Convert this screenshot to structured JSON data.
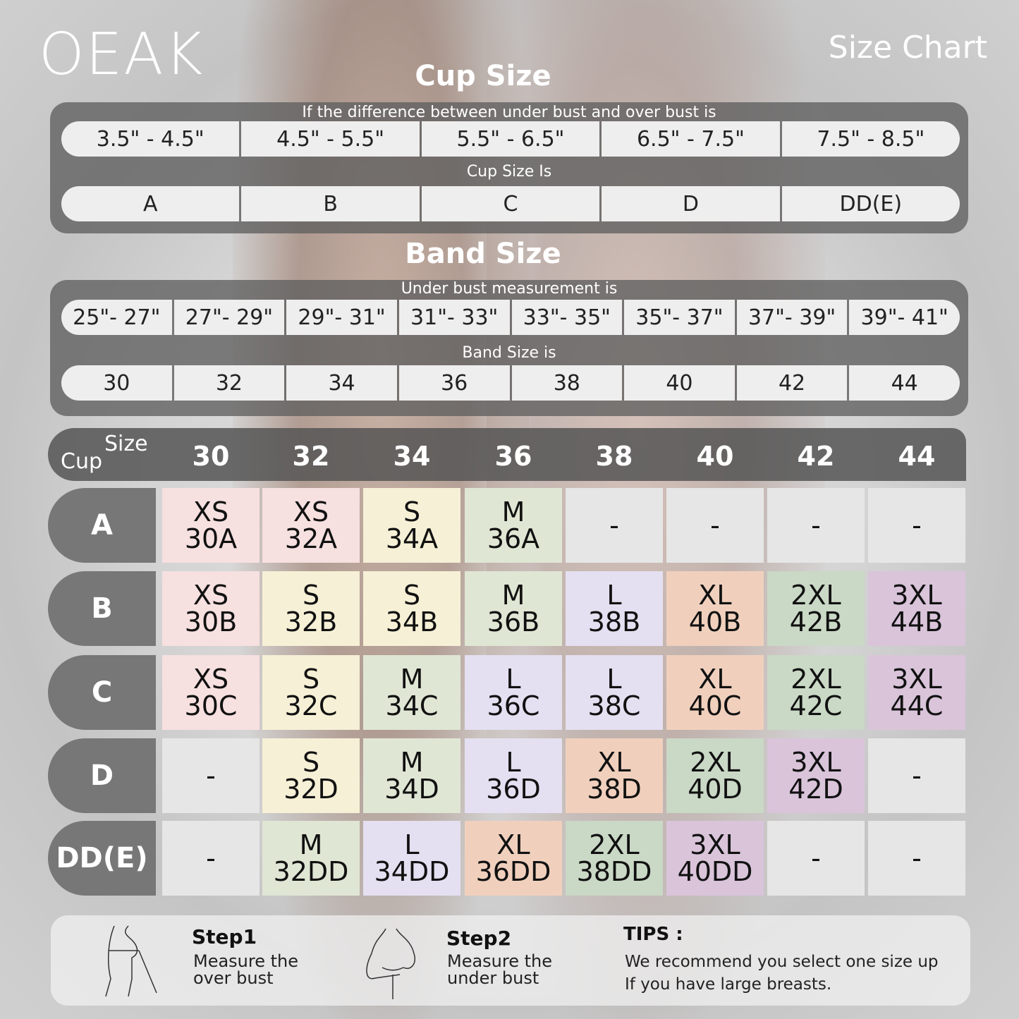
{
  "brand": "OEAK",
  "title": "Size Chart",
  "cup_section": {
    "heading": "Cup Size",
    "instruction": "If the  difference between under bust and over bust is",
    "ranges": [
      "3.5\" -  4.5\"",
      "4.5\" -  5.5\"",
      "5.5\" -  6.5\"",
      "6.5\" -  7.5\"",
      "7.5\" -  8.5\""
    ],
    "result_label": "Cup Size Is",
    "cups": [
      "A",
      "B",
      "C",
      "D",
      "DD(E)"
    ]
  },
  "band_section": {
    "heading": "Band Size",
    "instruction": "Under bust measurement is",
    "ranges": [
      "25\"- 27\"",
      "27\"- 29\"",
      "29\"- 31\"",
      "31\"- 33\"",
      "33\"- 35\"",
      "35\"- 37\"",
      "37\"- 39\"",
      "39\"- 41\""
    ],
    "result_label": "Band Size is",
    "bands": [
      "30",
      "32",
      "34",
      "36",
      "38",
      "40",
      "42",
      "44"
    ]
  },
  "table": {
    "corner_cup": "Cup",
    "corner_size": "Size",
    "columns": [
      "30",
      "32",
      "34",
      "36",
      "38",
      "40",
      "42",
      "44"
    ],
    "rows": [
      {
        "cup": "A",
        "cells": [
          [
            "XS",
            "30A"
          ],
          [
            "XS",
            "32A"
          ],
          [
            "S",
            "34A"
          ],
          [
            "M",
            "36A"
          ],
          [
            "-"
          ],
          [
            "-"
          ],
          [
            "-"
          ],
          [
            "-"
          ]
        ]
      },
      {
        "cup": "B",
        "cells": [
          [
            "XS",
            "30B"
          ],
          [
            "S",
            "32B"
          ],
          [
            "S",
            "34B"
          ],
          [
            "M",
            "36B"
          ],
          [
            "L",
            "38B"
          ],
          [
            "XL",
            "40B"
          ],
          [
            "2XL",
            "42B"
          ],
          [
            "3XL",
            "44B"
          ]
        ]
      },
      {
        "cup": "C",
        "cells": [
          [
            "XS",
            "30C"
          ],
          [
            "S",
            "32C"
          ],
          [
            "M",
            "34C"
          ],
          [
            "L",
            "36C"
          ],
          [
            "L",
            "38C"
          ],
          [
            "XL",
            "40C"
          ],
          [
            "2XL",
            "42C"
          ],
          [
            "3XL",
            "44C"
          ]
        ]
      },
      {
        "cup": "D",
        "cells": [
          [
            "-"
          ],
          [
            "S",
            "32D"
          ],
          [
            "M",
            "34D"
          ],
          [
            "L",
            "36D"
          ],
          [
            "XL",
            "38D"
          ],
          [
            "2XL",
            "40D"
          ],
          [
            "3XL",
            "42D"
          ],
          [
            "-"
          ]
        ]
      },
      {
        "cup": "DD(E)",
        "cells": [
          [
            "-"
          ],
          [
            "M",
            "32DD"
          ],
          [
            "L",
            "34DD"
          ],
          [
            "XL",
            "36DD"
          ],
          [
            "2XL",
            "38DD"
          ],
          [
            "3XL",
            "40DD"
          ],
          [
            "-"
          ],
          [
            "-"
          ]
        ]
      }
    ]
  },
  "size_colors": {
    "XS": "#f7e0e0",
    "S": "#f6f0d6",
    "M": "#e0e6d4",
    "L": "#e4e0f1",
    "XL": "#f0d0bd",
    "2XL": "#cad8c6",
    "3XL": "#d9c4da",
    "-": "#e6e6e6"
  },
  "steps": [
    {
      "title": "Step1",
      "line1": "Measure the",
      "line2": "over bust"
    },
    {
      "title": "Step2",
      "line1": "Measure the",
      "line2": "under bust"
    }
  ],
  "tips": {
    "title": "TIPS :",
    "line1": "We recommend you select one size up",
    "line2": "If you have large breasts."
  }
}
